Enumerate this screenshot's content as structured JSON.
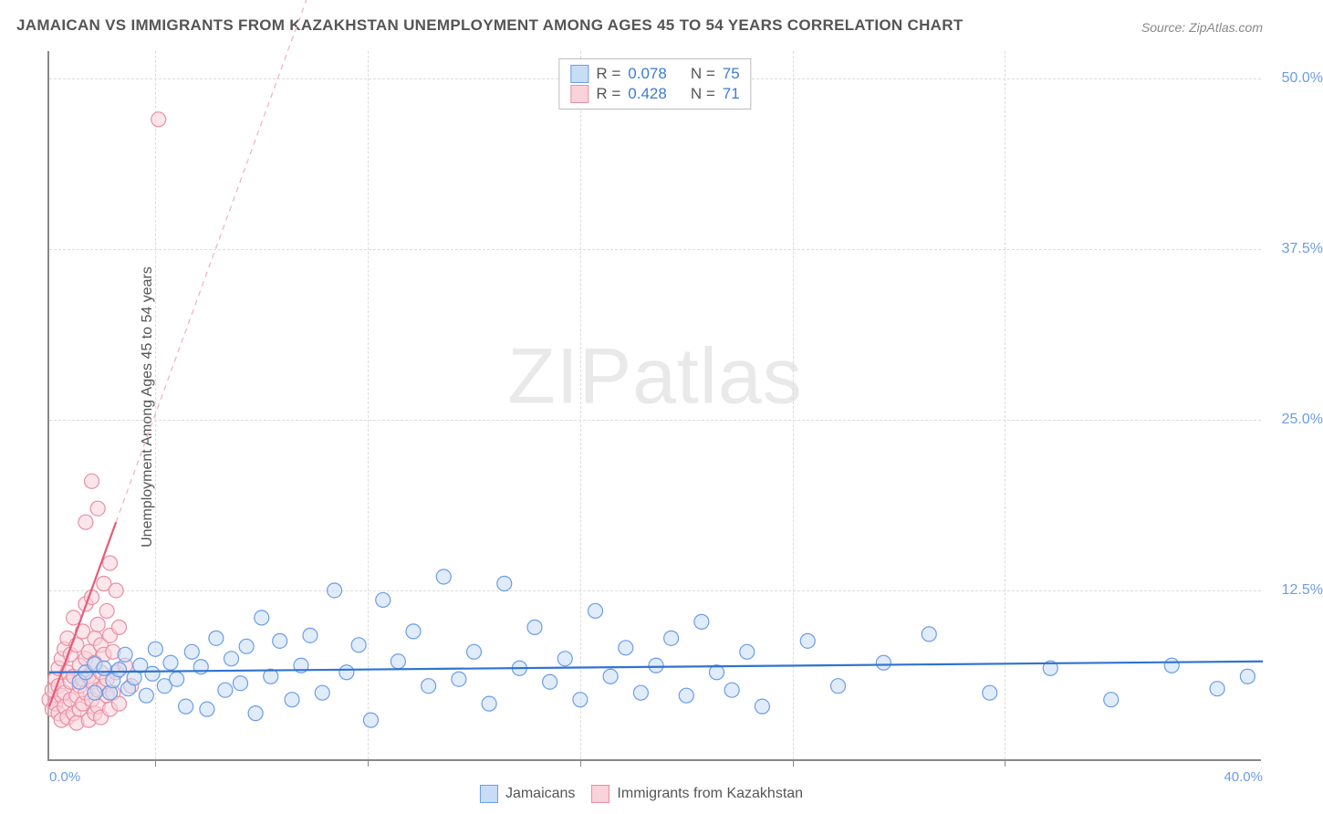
{
  "title": "JAMAICAN VS IMMIGRANTS FROM KAZAKHSTAN UNEMPLOYMENT AMONG AGES 45 TO 54 YEARS CORRELATION CHART",
  "source": "Source: ZipAtlas.com",
  "ylabel": "Unemployment Among Ages 45 to 54 years",
  "watermark_a": "ZIP",
  "watermark_b": "atlas",
  "chart": {
    "type": "scatter",
    "xlim": [
      0,
      40
    ],
    "ylim": [
      0,
      52
    ],
    "xticks_origin": "0.0%",
    "xticks_end": "40.0%",
    "yticks": [
      {
        "v": 12.5,
        "label": "12.5%"
      },
      {
        "v": 25.0,
        "label": "25.0%"
      },
      {
        "v": 37.5,
        "label": "37.5%"
      },
      {
        "v": 50.0,
        "label": "50.0%"
      }
    ],
    "xminor": [
      3.5,
      10.5,
      17.5,
      24.5,
      31.5
    ],
    "grid_color": "#dcdcdc",
    "background_color": "#ffffff",
    "marker_radius": 8,
    "marker_stroke_width": 1.2,
    "series": [
      {
        "name": "Jamaicans",
        "fill": "#c7ddf6",
        "stroke": "#6b9de8",
        "fill_opacity": 0.55,
        "R": "0.078",
        "N": "75",
        "trend": {
          "x1": 0,
          "y1": 6.5,
          "x2": 40,
          "y2": 7.3,
          "color": "#2f74d0",
          "width": 2.2,
          "dash": "none"
        },
        "points": [
          [
            1.0,
            5.8
          ],
          [
            1.2,
            6.5
          ],
          [
            1.5,
            7.1
          ],
          [
            1.5,
            5.0
          ],
          [
            1.8,
            6.8
          ],
          [
            2.0,
            5.0
          ],
          [
            2.1,
            5.9
          ],
          [
            2.3,
            6.7
          ],
          [
            2.5,
            7.8
          ],
          [
            2.6,
            5.3
          ],
          [
            2.8,
            6.1
          ],
          [
            3.0,
            7.0
          ],
          [
            3.2,
            4.8
          ],
          [
            3.4,
            6.4
          ],
          [
            3.5,
            8.2
          ],
          [
            3.8,
            5.5
          ],
          [
            4.0,
            7.2
          ],
          [
            4.2,
            6.0
          ],
          [
            4.5,
            4.0
          ],
          [
            4.7,
            8.0
          ],
          [
            5.0,
            6.9
          ],
          [
            5.2,
            3.8
          ],
          [
            5.5,
            9.0
          ],
          [
            5.8,
            5.2
          ],
          [
            6.0,
            7.5
          ],
          [
            6.3,
            5.7
          ],
          [
            6.5,
            8.4
          ],
          [
            6.8,
            3.5
          ],
          [
            7.0,
            10.5
          ],
          [
            7.3,
            6.2
          ],
          [
            7.6,
            8.8
          ],
          [
            8.0,
            4.5
          ],
          [
            8.3,
            7.0
          ],
          [
            8.6,
            9.2
          ],
          [
            9.0,
            5.0
          ],
          [
            9.4,
            12.5
          ],
          [
            9.8,
            6.5
          ],
          [
            10.2,
            8.5
          ],
          [
            10.6,
            3.0
          ],
          [
            11.0,
            11.8
          ],
          [
            11.5,
            7.3
          ],
          [
            12.0,
            9.5
          ],
          [
            12.5,
            5.5
          ],
          [
            13.0,
            13.5
          ],
          [
            13.5,
            6.0
          ],
          [
            14.0,
            8.0
          ],
          [
            14.5,
            4.2
          ],
          [
            15.0,
            13.0
          ],
          [
            15.5,
            6.8
          ],
          [
            16.0,
            9.8
          ],
          [
            16.5,
            5.8
          ],
          [
            17.0,
            7.5
          ],
          [
            17.5,
            4.5
          ],
          [
            18.0,
            11.0
          ],
          [
            18.5,
            6.2
          ],
          [
            19.0,
            8.3
          ],
          [
            19.5,
            5.0
          ],
          [
            20.0,
            7.0
          ],
          [
            20.5,
            9.0
          ],
          [
            21.0,
            4.8
          ],
          [
            21.5,
            10.2
          ],
          [
            22.0,
            6.5
          ],
          [
            22.5,
            5.2
          ],
          [
            23.0,
            8.0
          ],
          [
            23.5,
            4.0
          ],
          [
            25.0,
            8.8
          ],
          [
            26.0,
            5.5
          ],
          [
            27.5,
            7.2
          ],
          [
            29.0,
            9.3
          ],
          [
            31.0,
            5.0
          ],
          [
            33.0,
            6.8
          ],
          [
            35.0,
            4.5
          ],
          [
            37.0,
            7.0
          ],
          [
            38.5,
            5.3
          ],
          [
            39.5,
            6.2
          ]
        ]
      },
      {
        "name": "Immigrants from Kazakhstan",
        "fill": "#f9d2da",
        "stroke": "#e88fa3",
        "fill_opacity": 0.55,
        "R": "0.428",
        "N": "71",
        "trend_solid": {
          "x1": 0,
          "y1": 4.0,
          "x2": 2.2,
          "y2": 17.5,
          "color": "#e65a7a",
          "width": 2.2
        },
        "trend_dash": {
          "x1": 2.2,
          "y1": 17.5,
          "x2": 9.5,
          "y2": 62,
          "color": "#f0b6c2",
          "width": 1.3,
          "dash": "6,5"
        },
        "points": [
          [
            0.0,
            4.5
          ],
          [
            0.1,
            5.2
          ],
          [
            0.1,
            3.8
          ],
          [
            0.2,
            6.0
          ],
          [
            0.2,
            4.2
          ],
          [
            0.3,
            5.5
          ],
          [
            0.3,
            3.5
          ],
          [
            0.3,
            6.8
          ],
          [
            0.4,
            4.8
          ],
          [
            0.4,
            7.5
          ],
          [
            0.4,
            3.0
          ],
          [
            0.5,
            5.0
          ],
          [
            0.5,
            8.2
          ],
          [
            0.5,
            4.0
          ],
          [
            0.6,
            6.5
          ],
          [
            0.6,
            3.2
          ],
          [
            0.6,
            9.0
          ],
          [
            0.7,
            5.8
          ],
          [
            0.7,
            4.5
          ],
          [
            0.7,
            7.8
          ],
          [
            0.8,
            3.5
          ],
          [
            0.8,
            6.2
          ],
          [
            0.8,
            10.5
          ],
          [
            0.9,
            4.8
          ],
          [
            0.9,
            8.5
          ],
          [
            0.9,
            2.8
          ],
          [
            1.0,
            5.5
          ],
          [
            1.0,
            7.0
          ],
          [
            1.0,
            3.8
          ],
          [
            1.1,
            6.0
          ],
          [
            1.1,
            9.5
          ],
          [
            1.1,
            4.2
          ],
          [
            1.2,
            11.5
          ],
          [
            1.2,
            5.0
          ],
          [
            1.2,
            7.5
          ],
          [
            1.3,
            3.0
          ],
          [
            1.3,
            8.0
          ],
          [
            1.3,
            6.2
          ],
          [
            1.4,
            4.5
          ],
          [
            1.4,
            12.0
          ],
          [
            1.4,
            5.8
          ],
          [
            1.5,
            9.0
          ],
          [
            1.5,
            3.5
          ],
          [
            1.5,
            7.2
          ],
          [
            1.6,
            5.2
          ],
          [
            1.6,
            10.0
          ],
          [
            1.6,
            4.0
          ],
          [
            1.7,
            6.5
          ],
          [
            1.7,
            8.5
          ],
          [
            1.7,
            3.2
          ],
          [
            1.8,
            13.0
          ],
          [
            1.8,
            5.5
          ],
          [
            1.8,
            7.8
          ],
          [
            1.9,
            4.8
          ],
          [
            1.9,
            11.0
          ],
          [
            1.9,
            6.0
          ],
          [
            2.0,
            9.2
          ],
          [
            2.0,
            3.8
          ],
          [
            2.0,
            14.5
          ],
          [
            2.1,
            5.0
          ],
          [
            2.1,
            8.0
          ],
          [
            2.2,
            6.5
          ],
          [
            2.2,
            12.5
          ],
          [
            2.3,
            4.2
          ],
          [
            2.3,
            9.8
          ],
          [
            2.5,
            7.0
          ],
          [
            2.7,
            5.5
          ],
          [
            1.2,
            17.5
          ],
          [
            1.4,
            20.5
          ],
          [
            1.6,
            18.5
          ],
          [
            3.6,
            47.0
          ]
        ]
      }
    ]
  },
  "legend_bottom": {
    "a": "Jamaicans",
    "b": "Immigrants from Kazakhstan"
  },
  "rn_legend": {
    "r_label": "R =",
    "n_label": "N ="
  }
}
